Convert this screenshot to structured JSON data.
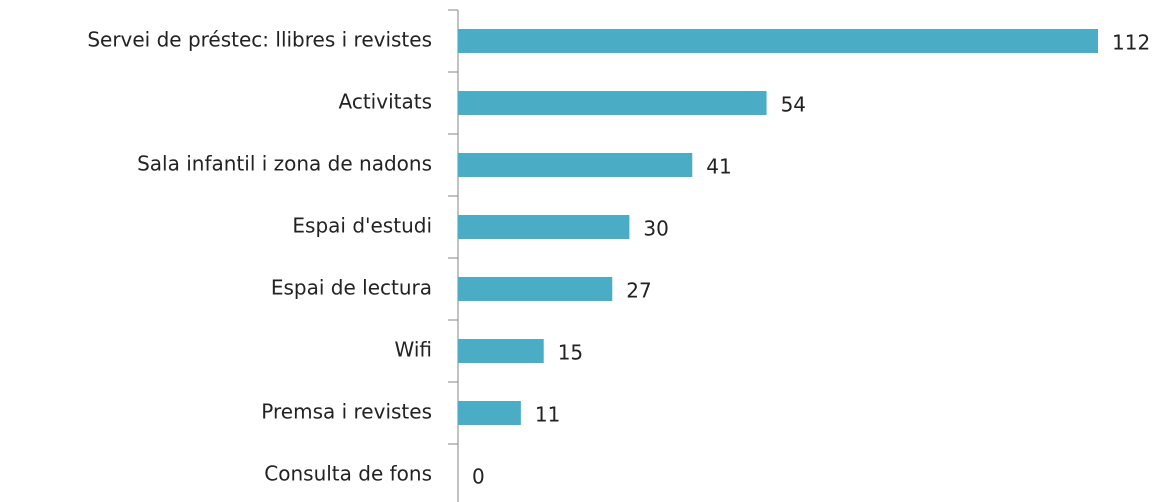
{
  "chart_data": {
    "type": "bar",
    "orientation": "horizontal",
    "categories": [
      "Servei de préstec: llibres i revistes",
      "Activitats",
      "Sala infantil i zona de nadons",
      "Espai d'estudi",
      "Espai de lectura",
      "Wifi",
      "Premsa i revistes",
      "Consulta de fons"
    ],
    "values": [
      112,
      54,
      41,
      30,
      27,
      15,
      11,
      0
    ],
    "color": "#4bacc6"
  }
}
